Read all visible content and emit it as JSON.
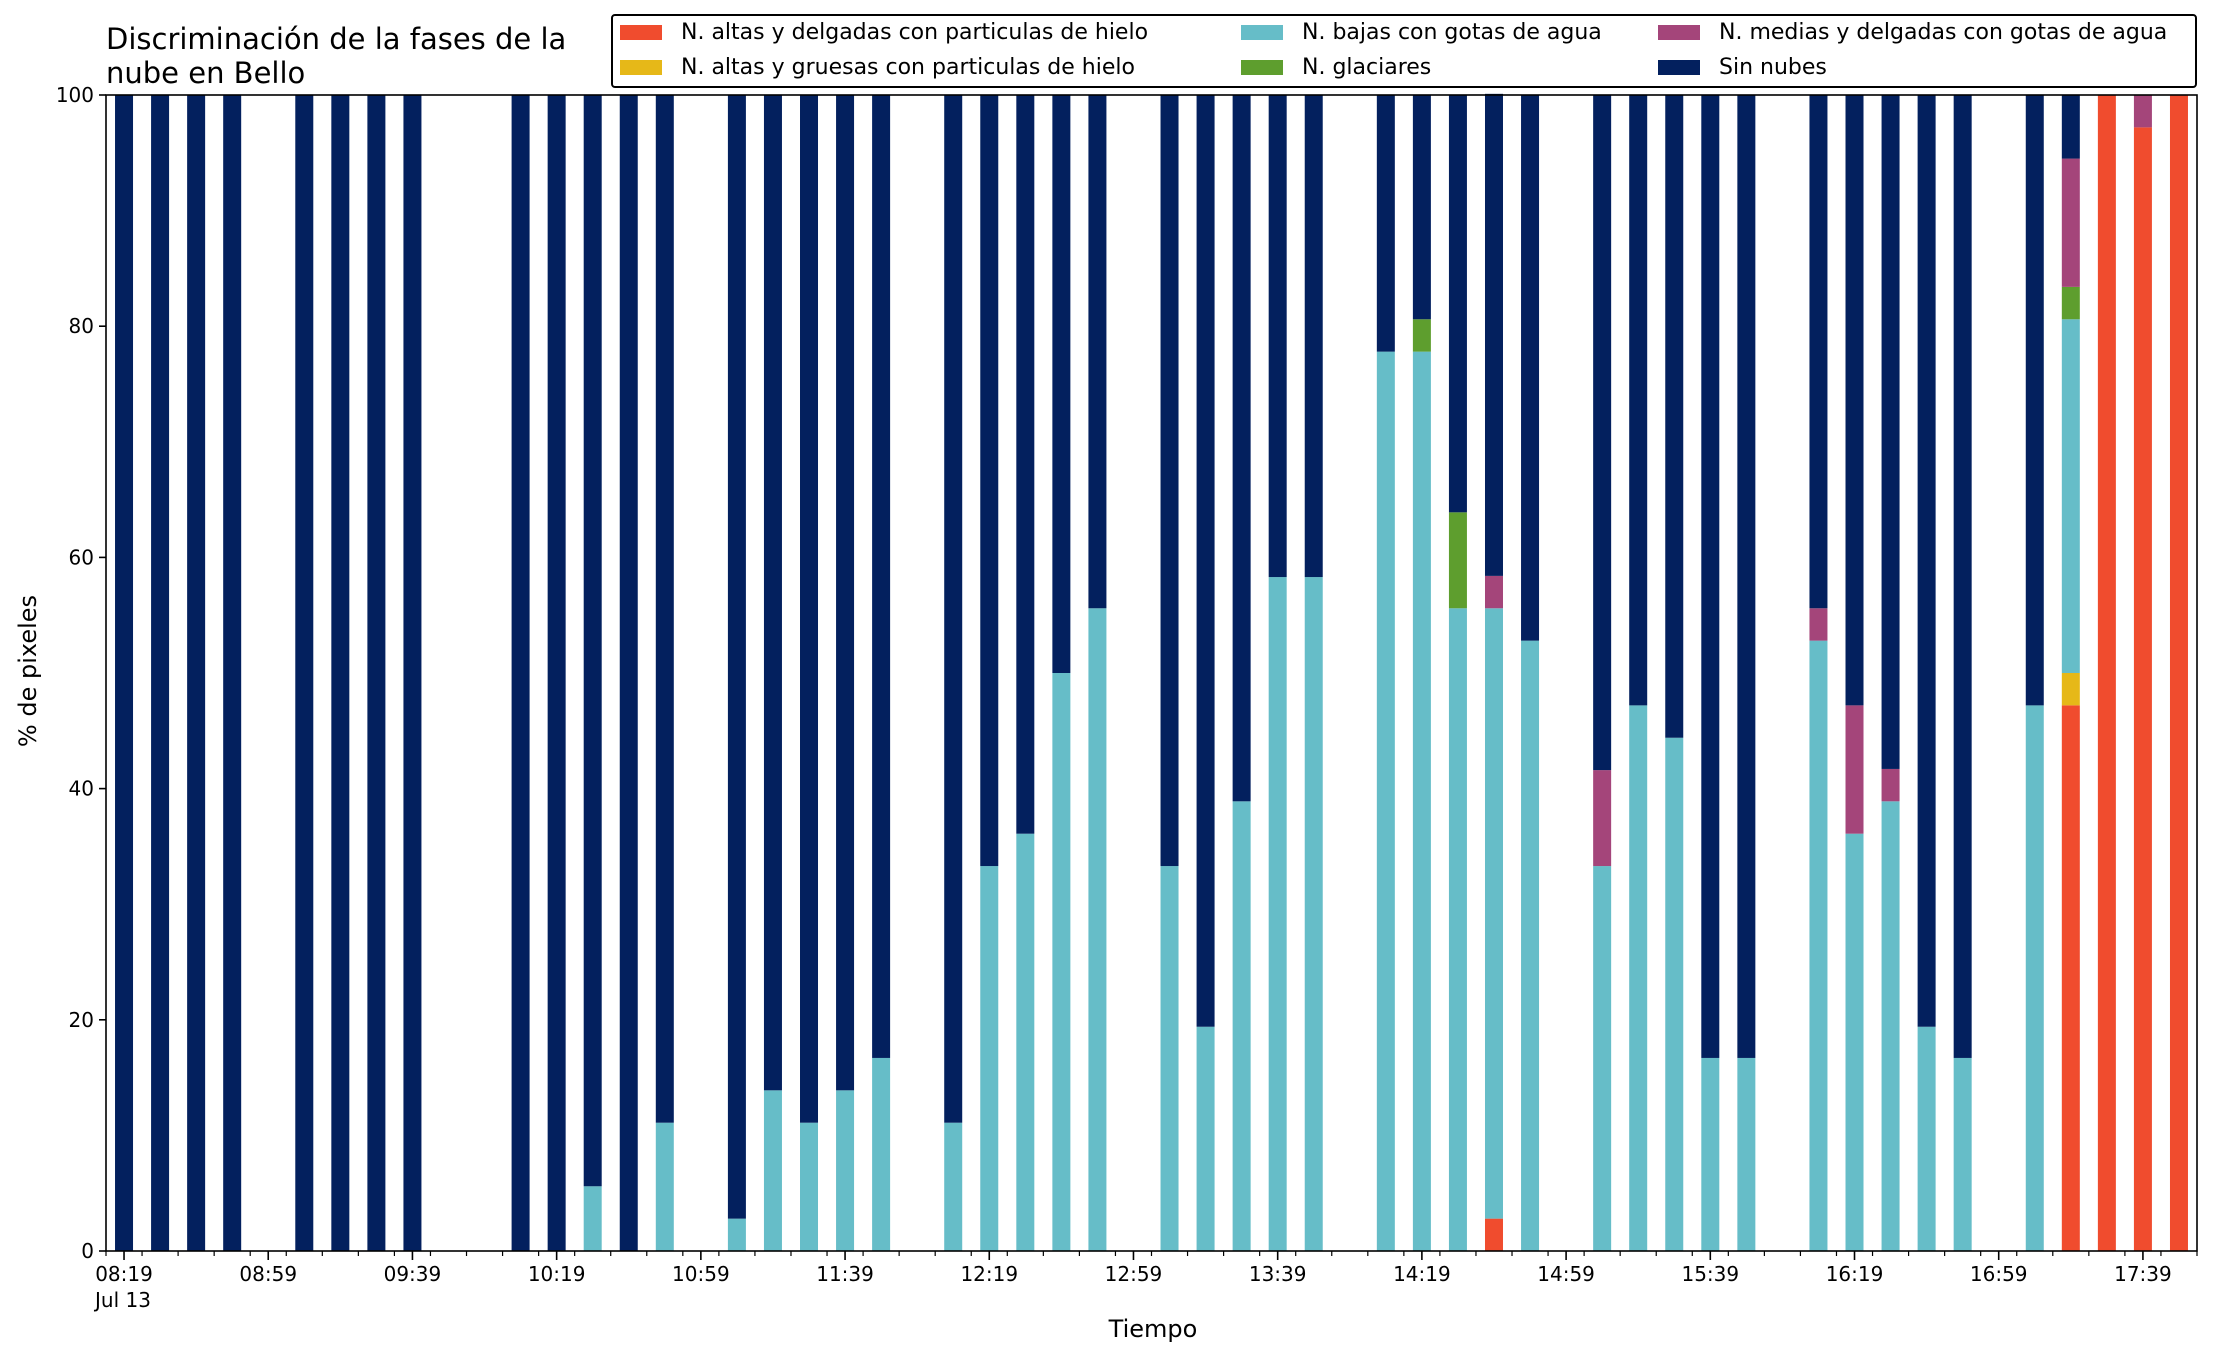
{
  "chart_data": {
    "type": "bar",
    "title": "Discriminación de la fases de la\nnube en Bello",
    "xlabel": "Tiempo",
    "ylabel": "% de pixeles",
    "ylim": [
      0,
      100
    ],
    "yticks": [
      0,
      20,
      40,
      60,
      80,
      100
    ],
    "xtick_labels": [
      "08:19",
      "08:59",
      "09:39",
      "10:19",
      "10:59",
      "11:39",
      "12:19",
      "12:59",
      "13:39",
      "14:19",
      "14:59",
      "15:39",
      "16:19",
      "16:59",
      "17:39"
    ],
    "date_label": "Jul 13",
    "x_range_minutes": [
      "08:14",
      "17:54"
    ],
    "minor_tick_step_minutes": 10,
    "stacked": true,
    "legend_position": "top-right",
    "grid": false,
    "times": [
      "08:19",
      "08:29",
      "08:39",
      "08:49",
      "09:09",
      "09:19",
      "09:29",
      "09:39",
      "10:09",
      "10:19",
      "10:29",
      "10:39",
      "10:49",
      "11:09",
      "11:19",
      "11:29",
      "11:39",
      "11:49",
      "12:09",
      "12:19",
      "12:29",
      "12:39",
      "12:49",
      "13:09",
      "13:19",
      "13:29",
      "13:39",
      "13:49",
      "14:09",
      "14:19",
      "14:29",
      "14:39",
      "14:49",
      "15:09",
      "15:19",
      "15:29",
      "15:39",
      "15:49",
      "16:09",
      "16:19",
      "16:29",
      "16:39",
      "16:49",
      "17:09",
      "17:19",
      "17:29",
      "17:39",
      "17:49"
    ],
    "series": [
      {
        "name": "N. altas y delgadas con particulas de hielo",
        "color": "#f04c2e",
        "values": [
          0,
          0,
          0,
          0,
          0,
          0,
          0,
          0,
          0,
          0,
          0,
          0,
          0,
          0,
          0,
          0,
          0,
          0,
          0,
          0,
          0,
          0,
          0,
          0,
          0,
          0,
          0,
          0,
          0,
          0,
          0,
          2.8,
          0,
          0,
          0,
          0,
          0,
          0,
          0,
          0,
          0,
          0,
          0,
          0,
          47.2,
          100,
          97.2,
          100
        ]
      },
      {
        "name": "N. altas y gruesas con particulas de hielo",
        "color": "#e6b818",
        "values": [
          0,
          0,
          0,
          0,
          0,
          0,
          0,
          0,
          0,
          0,
          0,
          0,
          0,
          0,
          0,
          0,
          0,
          0,
          0,
          0,
          0,
          0,
          0,
          0,
          0,
          0,
          0,
          0,
          0,
          0,
          0,
          0,
          0,
          0,
          0,
          0,
          0,
          0,
          0,
          0,
          0,
          0,
          0,
          0,
          2.8,
          0,
          0,
          0
        ]
      },
      {
        "name": "N. bajas con gotas de agua",
        "color": "#66bdc8",
        "values": [
          0,
          0,
          0,
          0,
          0,
          0,
          0,
          0,
          0,
          0,
          5.6,
          0,
          11.1,
          2.8,
          13.9,
          11.1,
          13.9,
          16.7,
          11.1,
          33.3,
          36.1,
          50,
          55.6,
          33.3,
          19.4,
          38.9,
          58.3,
          58.3,
          77.8,
          77.8,
          55.6,
          52.8,
          52.8,
          33.3,
          47.2,
          44.4,
          16.7,
          16.7,
          52.8,
          36.1,
          38.9,
          19.4,
          16.7,
          47.2,
          30.6,
          0,
          0,
          0
        ]
      },
      {
        "name": "N. glaciares",
        "color": "#5e9e2e",
        "values": [
          0,
          0,
          0,
          0,
          0,
          0,
          0,
          0,
          0,
          0,
          0,
          0,
          0,
          0,
          0,
          0,
          0,
          0,
          0,
          0,
          0,
          0,
          0,
          0,
          0,
          0,
          0,
          0,
          0,
          2.8,
          8.3,
          0,
          0,
          0,
          0,
          0,
          0,
          0,
          0,
          0,
          0,
          0,
          0,
          0,
          2.8,
          0,
          0,
          0
        ]
      },
      {
        "name": "N. medias y delgadas con gotas de agua",
        "color": "#a4457a",
        "values": [
          0,
          0,
          0,
          0,
          0,
          0,
          0,
          0,
          0,
          0,
          0,
          0,
          0,
          0,
          0,
          0,
          0,
          0,
          0,
          0,
          0,
          0,
          0,
          0,
          0,
          0,
          0,
          0,
          0,
          0,
          0,
          2.8,
          0,
          8.3,
          0,
          0,
          0,
          0,
          2.8,
          11.1,
          2.8,
          0,
          0,
          0,
          11.1,
          0,
          2.8,
          0
        ]
      },
      {
        "name": "Sin nubes",
        "color": "#03205e",
        "values": [
          100,
          100,
          100,
          100,
          100,
          100,
          100,
          100,
          100,
          100,
          94.4,
          100,
          88.9,
          97.2,
          86.1,
          88.9,
          86.1,
          83.3,
          88.9,
          66.7,
          63.9,
          50,
          44.4,
          66.7,
          80.6,
          61.1,
          41.7,
          41.7,
          22.2,
          19.4,
          36.1,
          41.7,
          47.2,
          58.4,
          52.8,
          55.6,
          83.3,
          83.3,
          44.4,
          52.8,
          58.3,
          80.6,
          83.3,
          52.8,
          5.5,
          0,
          0,
          0
        ]
      }
    ]
  }
}
